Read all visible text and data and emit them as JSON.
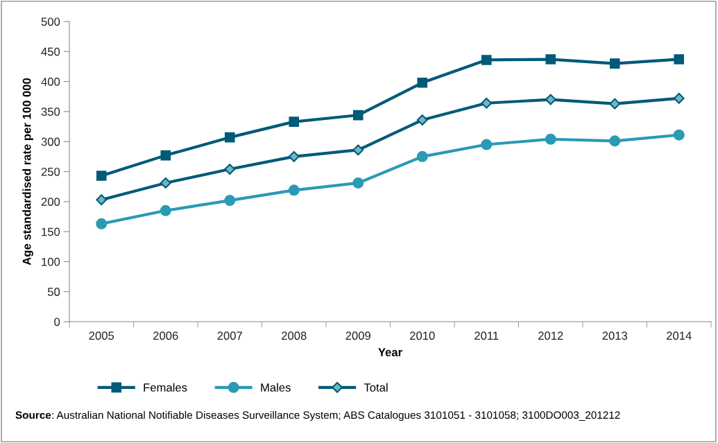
{
  "chart_data": {
    "type": "line",
    "xlabel": "Year",
    "ylabel": "Age standardised rate per 100 000",
    "categories": [
      "2005",
      "2006",
      "2007",
      "2008",
      "2009",
      "2010",
      "2011",
      "2012",
      "2013",
      "2014"
    ],
    "series": [
      {
        "name": "Females",
        "color": "#005a78",
        "marker": "square",
        "values": [
          243,
          277,
          307,
          333,
          344,
          398,
          436,
          437,
          430,
          437
        ]
      },
      {
        "name": "Males",
        "color": "#2a9ab5",
        "marker": "circle",
        "values": [
          163,
          185,
          202,
          219,
          231,
          275,
          295,
          304,
          301,
          311
        ]
      },
      {
        "name": "Total",
        "color": "#005a78",
        "marker": "diamond",
        "values": [
          203,
          231,
          254,
          275,
          286,
          336,
          364,
          370,
          363,
          372
        ]
      }
    ],
    "ylim": [
      0,
      500
    ],
    "yticks": [
      0,
      50,
      100,
      150,
      200,
      250,
      300,
      350,
      400,
      450,
      500
    ],
    "grid": false,
    "legend": "bottom",
    "line_style": "solid",
    "annotations": [
      "Source: Australian National Notifiable Diseases Surveillance System; ABS Catalogues 3101051 - 3101058; 3100DO003_201212"
    ]
  }
}
